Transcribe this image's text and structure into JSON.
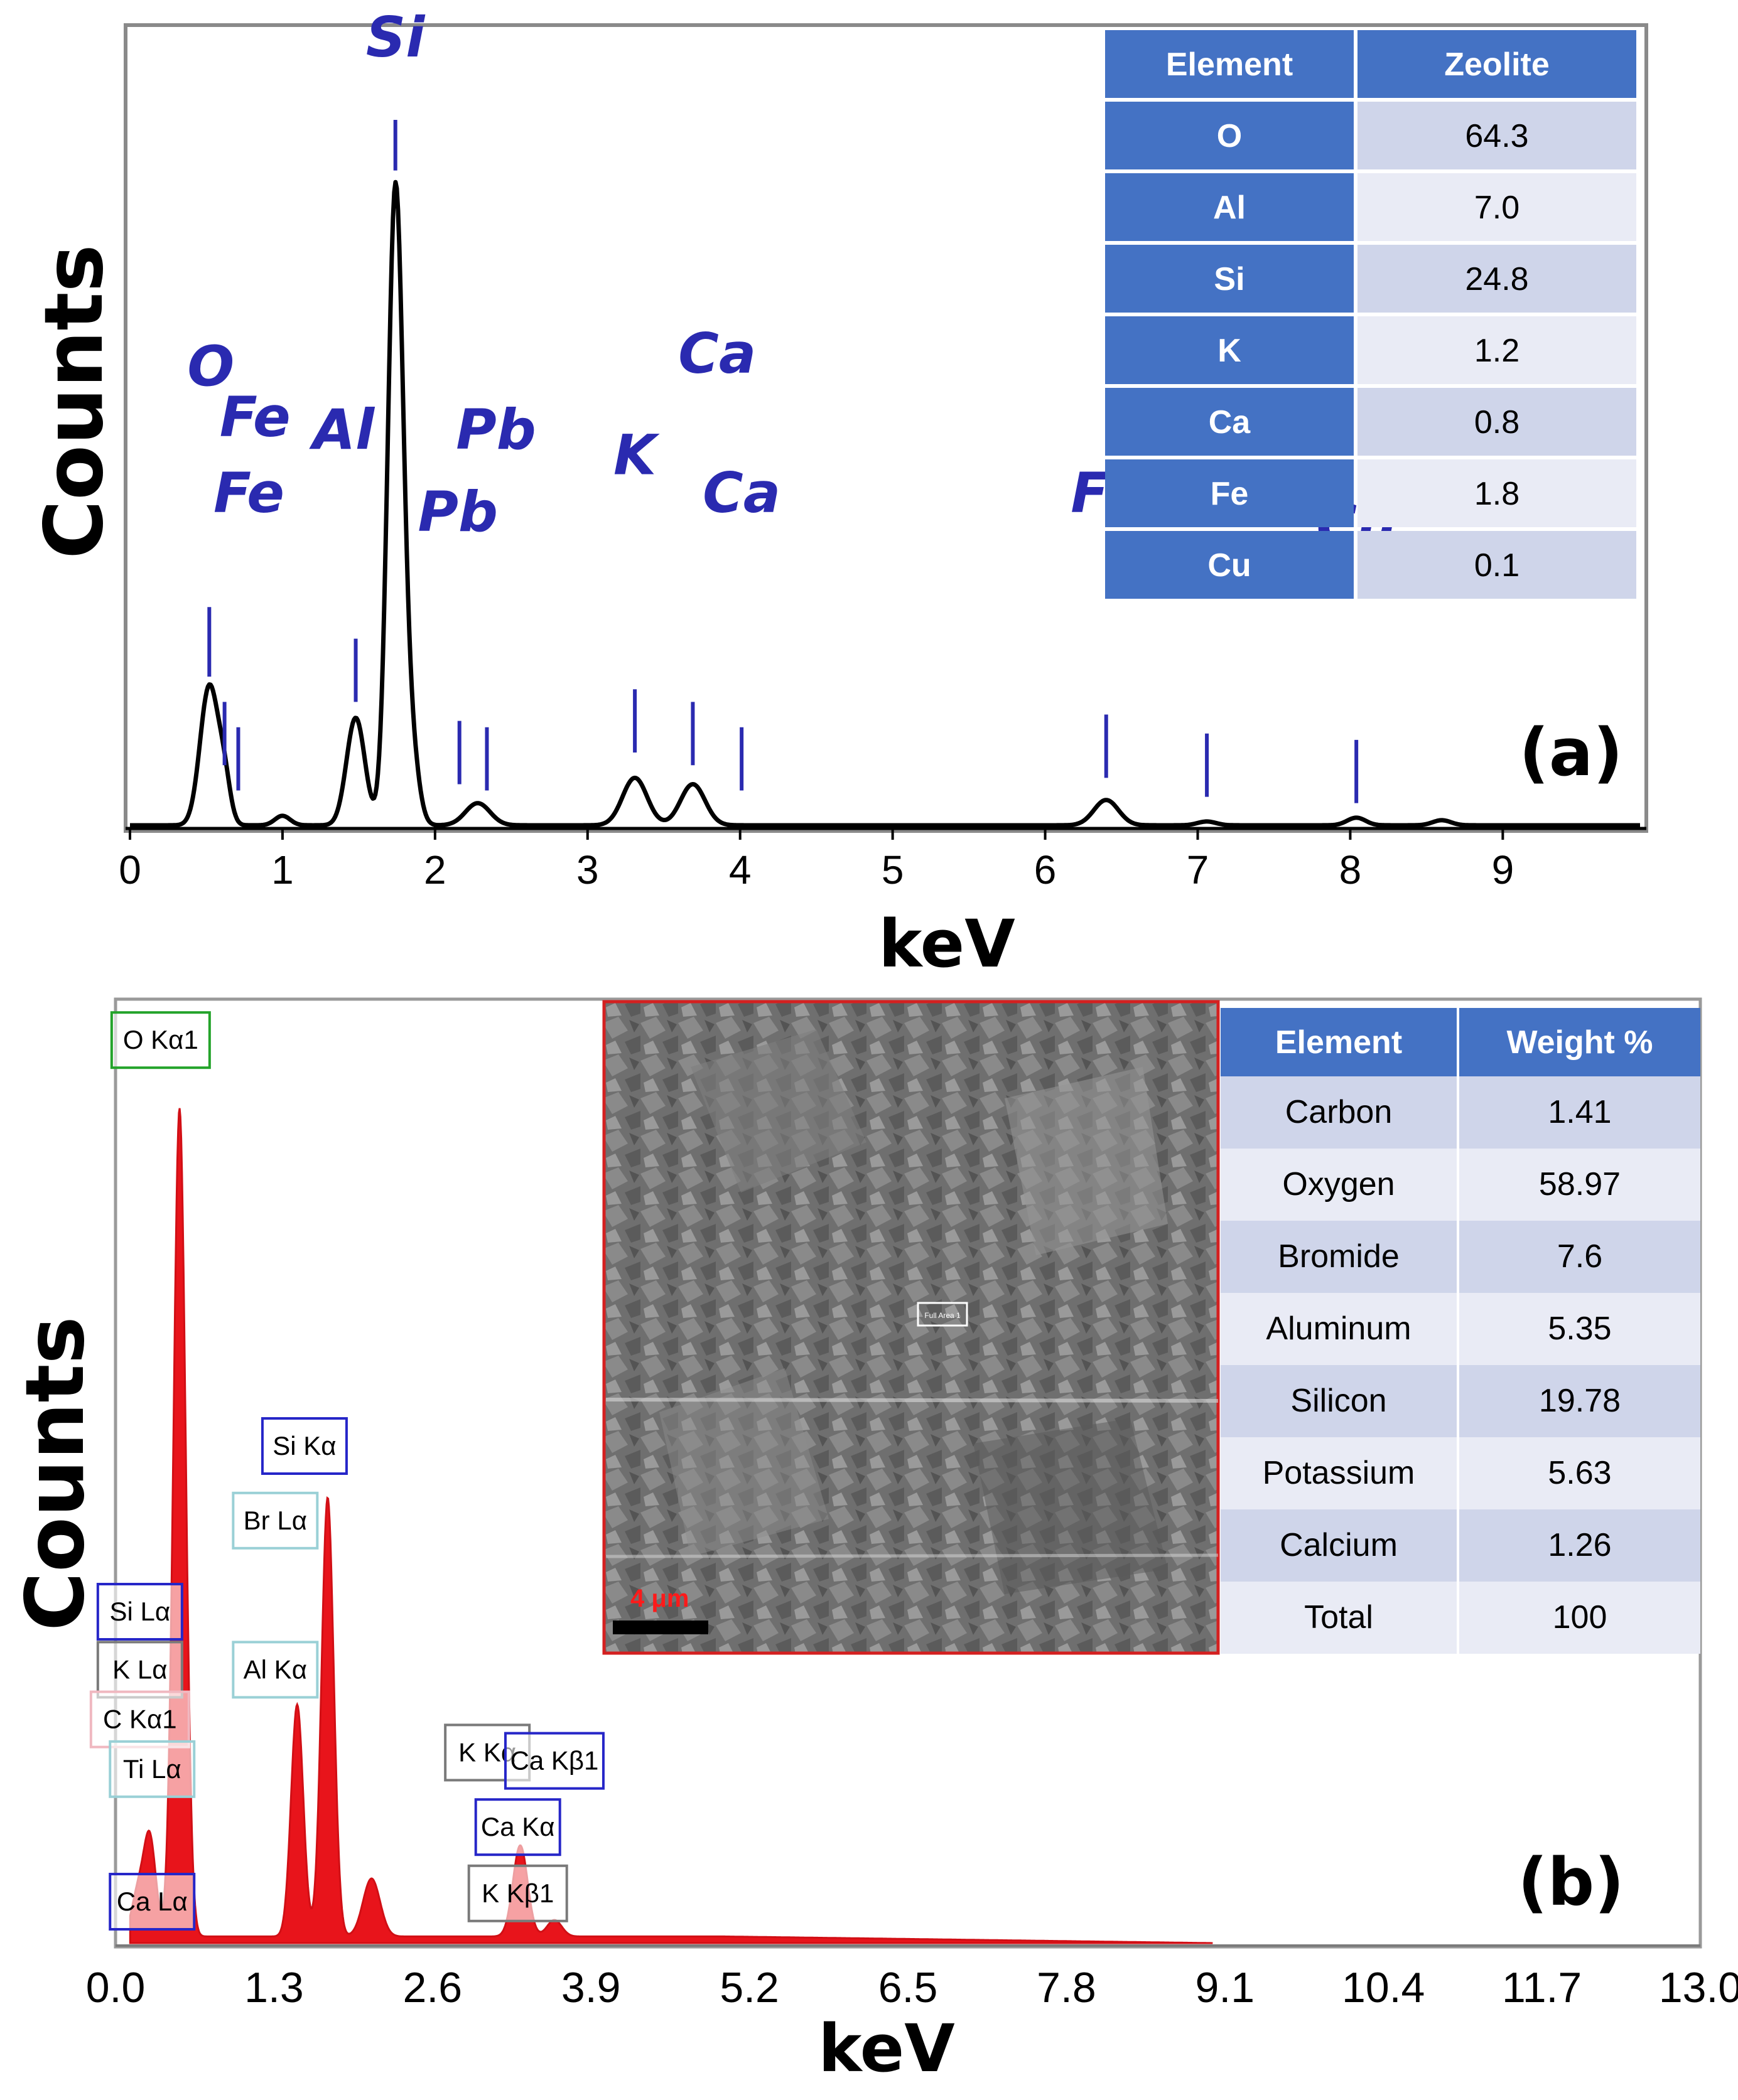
{
  "chart_data": [
    {
      "panel": "(a)",
      "type": "line",
      "xlabel": "keV",
      "ylabel": "Counts",
      "xlim": [
        0,
        9.9
      ],
      "x_ticks": [
        0,
        1,
        2,
        3,
        4,
        5,
        6,
        7,
        8,
        9
      ],
      "ylim": [
        0,
        1
      ],
      "grid": false,
      "line_color": "#000000",
      "marker_color": "#2a2ab0",
      "peaks": [
        {
          "x": 0.52,
          "height": 0.22,
          "width": 0.06
        },
        {
          "x": 0.62,
          "height": 0.06,
          "width": 0.04
        },
        {
          "x": 1.0,
          "height": 0.015,
          "width": 0.05
        },
        {
          "x": 1.48,
          "height": 0.17,
          "width": 0.06
        },
        {
          "x": 1.74,
          "height": 1.0,
          "width": 0.05
        },
        {
          "x": 1.84,
          "height": 0.12,
          "width": 0.05
        },
        {
          "x": 2.28,
          "height": 0.035,
          "width": 0.08
        },
        {
          "x": 3.31,
          "height": 0.075,
          "width": 0.08
        },
        {
          "x": 3.69,
          "height": 0.065,
          "width": 0.08
        },
        {
          "x": 6.4,
          "height": 0.04,
          "width": 0.08
        },
        {
          "x": 7.06,
          "height": 0.006,
          "width": 0.06
        },
        {
          "x": 8.04,
          "height": 0.012,
          "width": 0.06
        },
        {
          "x": 8.6,
          "height": 0.008,
          "width": 0.06
        }
      ],
      "baseline": 0.005,
      "element_markers": [
        {
          "label": "O",
          "x": 0.52,
          "lo": 0.24,
          "hi": 0.35,
          "tx": 0.53,
          "ty": 0.7
        },
        {
          "label": "Fe",
          "x": 0.62,
          "lo": 0.1,
          "hi": 0.2,
          "tx": 0.82,
          "ty": 0.62
        },
        {
          "label": "Fe",
          "x": 0.71,
          "lo": 0.06,
          "hi": 0.16,
          "tx": 0.78,
          "ty": 0.5
        },
        {
          "label": "Al",
          "x": 1.48,
          "lo": 0.2,
          "hi": 0.3,
          "tx": 1.4,
          "ty": 0.6
        },
        {
          "label": "Si",
          "x": 1.74,
          "lo": 1.04,
          "hi": 1.12,
          "tx": 1.74,
          "ty": 1.22
        },
        {
          "label": "Pb",
          "x": 2.16,
          "lo": 0.07,
          "hi": 0.17,
          "tx": 2.15,
          "ty": 0.47
        },
        {
          "label": "Pb",
          "x": 2.34,
          "lo": 0.06,
          "hi": 0.16,
          "tx": 2.4,
          "ty": 0.6
        },
        {
          "label": "K",
          "x": 3.31,
          "lo": 0.12,
          "hi": 0.22,
          "tx": 3.31,
          "ty": 0.56
        },
        {
          "label": "Ca",
          "x": 3.69,
          "lo": 0.1,
          "hi": 0.2,
          "tx": 3.85,
          "ty": 0.72
        },
        {
          "label": "Ca",
          "x": 4.01,
          "lo": 0.06,
          "hi": 0.16,
          "tx": 4.01,
          "ty": 0.5
        },
        {
          "label": "Fe",
          "x": 6.4,
          "lo": 0.08,
          "hi": 0.18,
          "tx": 6.4,
          "ty": 0.5
        },
        {
          "label": "Fe",
          "x": 7.06,
          "lo": 0.05,
          "hi": 0.15,
          "tx": 7.06,
          "ty": 0.48
        },
        {
          "label": "Cu",
          "x": 8.04,
          "lo": 0.04,
          "hi": 0.14,
          "tx": 8.04,
          "ty": 0.45
        }
      ],
      "table": {
        "headers": [
          "Element",
          "Zeolite"
        ],
        "rows": [
          [
            "O",
            "64.3"
          ],
          [
            "Al",
            "7.0"
          ],
          [
            "Si",
            "24.8"
          ],
          [
            "K",
            "1.2"
          ],
          [
            "Ca",
            "0.8"
          ],
          [
            "Fe",
            "1.8"
          ],
          [
            "Cu",
            "0.1"
          ]
        ]
      }
    },
    {
      "panel": "(b)",
      "type": "area",
      "xlabel": "keV",
      "ylabel": "Counts",
      "xlim": [
        0,
        13
      ],
      "x_ticks": [
        "0.0",
        "1.3",
        "2.6",
        "3.9",
        "5.2",
        "6.5",
        "7.8",
        "9.1",
        "10.4",
        "11.7",
        "13.0"
      ],
      "ylim": [
        0,
        1
      ],
      "grid": false,
      "fill_color": "#e8141b",
      "peaks": [
        {
          "x": 0.18,
          "height": 0.05,
          "width": 0.05
        },
        {
          "x": 0.28,
          "height": 0.12,
          "width": 0.05
        },
        {
          "x": 0.525,
          "height": 1.0,
          "width": 0.05
        },
        {
          "x": 1.49,
          "height": 0.28,
          "width": 0.05
        },
        {
          "x": 1.74,
          "height": 0.53,
          "width": 0.05
        },
        {
          "x": 2.1,
          "height": 0.07,
          "width": 0.07
        },
        {
          "x": 3.32,
          "height": 0.11,
          "width": 0.06
        },
        {
          "x": 3.6,
          "height": 0.02,
          "width": 0.06
        }
      ],
      "baseline": 0.008,
      "line_labels": [
        {
          "label": "O  Kα1",
          "x": 0.37,
          "y": 1.09,
          "border": "#23a32a"
        },
        {
          "label": "Si Kα",
          "x": 1.55,
          "y": 0.6,
          "border": "#2626c8"
        },
        {
          "label": "Br Lα",
          "x": 1.31,
          "y": 0.51,
          "border": "#9ad0d6"
        },
        {
          "label": "Si Lα",
          "x": 0.2,
          "y": 0.4,
          "border": "#2626c8"
        },
        {
          "label": "K  Lα",
          "x": 0.2,
          "y": 0.33,
          "border": "#7a7a7a"
        },
        {
          "label": "C  Kα1",
          "x": 0.2,
          "y": 0.27,
          "border": "#f0b8c0"
        },
        {
          "label": "Ti Lα",
          "x": 0.3,
          "y": 0.21,
          "border": "#9ad0d6"
        },
        {
          "label": "Al Kα",
          "x": 1.31,
          "y": 0.33,
          "border": "#9ad0d6"
        },
        {
          "label": "Ca Lα",
          "x": 0.3,
          "y": 0.05,
          "border": "#2626c8"
        },
        {
          "label": "K  Kα",
          "x": 3.05,
          "y": 0.23,
          "border": "#7a7a7a"
        },
        {
          "label": "Ca Kβ1",
          "x": 3.6,
          "y": 0.22,
          "border": "#2626c8"
        },
        {
          "label": "Ca Kα",
          "x": 3.3,
          "y": 0.14,
          "border": "#2626c8"
        },
        {
          "label": "K  Kβ1",
          "x": 3.3,
          "y": 0.06,
          "border": "#7a7a7a"
        }
      ],
      "inset_image": {
        "scale_bar": "4 μm",
        "box_text": "Full Area 1"
      },
      "table": {
        "headers": [
          "Element",
          "Weight %"
        ],
        "rows": [
          [
            "Carbon",
            "1.41"
          ],
          [
            "Oxygen",
            "58.97"
          ],
          [
            "Bromide",
            "7.6"
          ],
          [
            "Aluminum",
            "5.35"
          ],
          [
            "Silicon",
            "19.78"
          ],
          [
            "Potassium",
            "5.63"
          ],
          [
            "Calcium",
            "1.26"
          ],
          [
            "Total",
            "100"
          ]
        ]
      }
    }
  ],
  "colors": {
    "table_header": "#4472c4",
    "table_row_a": "#cfd5ea",
    "table_row_b": "#e9ebf5",
    "marker_text": "#2a2ab0"
  }
}
